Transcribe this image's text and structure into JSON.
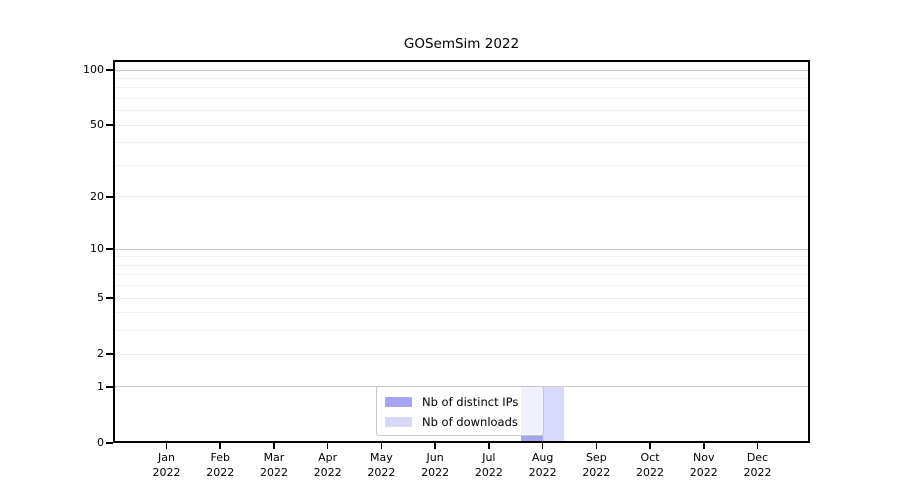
{
  "title": "GOSemSim 2022",
  "legend": {
    "items": [
      {
        "label": "Nb of distinct IPs",
        "color": "#a4a4f0"
      },
      {
        "label": "Nb of downloads",
        "color": "#d8d8fa"
      }
    ]
  },
  "y_axis": {
    "tick_labels": [
      "100",
      "50",
      "20",
      "10",
      "5",
      "2",
      "1",
      "0"
    ]
  },
  "x_axis": {
    "year": "2022",
    "months": [
      "Jan",
      "Feb",
      "Mar",
      "Apr",
      "May",
      "Jun",
      "Jul",
      "Aug",
      "Sep",
      "Oct",
      "Nov",
      "Dec"
    ]
  },
  "chart_data": {
    "type": "bar",
    "title": "GOSemSim 2022",
    "categories": [
      "Jan 2022",
      "Feb 2022",
      "Mar 2022",
      "Apr 2022",
      "May 2022",
      "Jun 2022",
      "Jul 2022",
      "Aug 2022",
      "Sep 2022",
      "Oct 2022",
      "Nov 2022",
      "Dec 2022"
    ],
    "series": [
      {
        "name": "Nb of distinct IPs",
        "color": "#a4a4f0",
        "values": [
          0,
          0,
          0,
          0,
          0,
          0,
          0,
          1,
          0,
          0,
          0,
          0
        ]
      },
      {
        "name": "Nb of downloads",
        "color": "#d8d8fa",
        "values": [
          0,
          0,
          0,
          0,
          0,
          0,
          0,
          1,
          0,
          0,
          0,
          0
        ]
      }
    ],
    "xlabel": "",
    "ylabel": "",
    "yscale": "log1p",
    "yticks": [
      0,
      1,
      2,
      5,
      10,
      20,
      50,
      100
    ],
    "yticks_minor": [
      3,
      4,
      6,
      7,
      8,
      9,
      30,
      40,
      60,
      70,
      80,
      90
    ],
    "ylim": [
      0,
      113
    ],
    "grid": true,
    "legend_position": "lower center"
  }
}
